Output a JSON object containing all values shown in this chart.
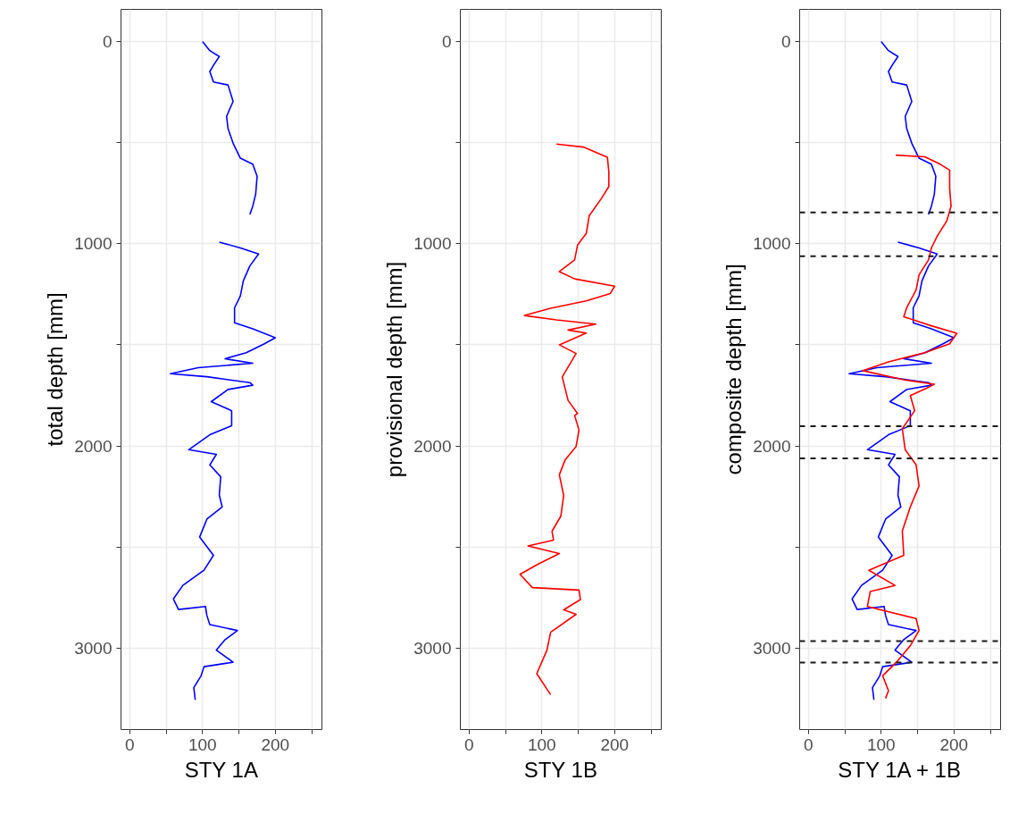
{
  "chart_data": [
    {
      "type": "line",
      "xlabel": "STY 1A",
      "ylabel": "total depth [mm]",
      "xlim": [
        -12,
        264
      ],
      "xticks": [
        0,
        {
          "value": 50,
          "label": null
        },
        100,
        {
          "value": 150,
          "label": null
        },
        200,
        {
          "value": 250,
          "label": null
        }
      ],
      "ylim": [
        3403,
        -159
      ],
      "yticks": [
        0,
        {
          "value": 500,
          "label": null
        },
        1000,
        {
          "value": 1500,
          "label": null
        },
        2000,
        {
          "value": 2500,
          "label": null
        },
        3000
      ],
      "grid": true,
      "series": [
        {
          "color": "#0000ff",
          "x": [
            100,
            110,
            123,
            115,
            110,
            115,
            135,
            142,
            133,
            135,
            142,
            152,
            169,
            175,
            173,
            169,
            165,
            null,
            123,
            152,
            177,
            165,
            156,
            152,
            144,
            144,
            169,
            200,
            185,
            160,
            131,
            169,
            94,
            56,
            106,
            165,
            169,
            135,
            112,
            140,
            140,
            110,
            81,
            119,
            110,
            125,
            123,
            127,
            106,
            96,
            115,
            102,
            73,
            60,
            67,
            104,
            106,
            110,
            148,
            131,
            119,
            142,
            102,
            98,
            88,
            90
          ],
          "values": [
            0,
            45,
            74,
            118,
            148,
            200,
            215,
            296,
            370,
            430,
            503,
            577,
            607,
            666,
            755,
            814,
            855,
            null,
            992,
            1021,
            1051,
            1110,
            1184,
            1258,
            1317,
            1391,
            1421,
            1465,
            1495,
            1539,
            1569,
            1591,
            1613,
            1643,
            1658,
            1687,
            1700,
            1721,
            1781,
            1826,
            1900,
            1945,
            2019,
            2042,
            2094,
            2153,
            2243,
            2302,
            2362,
            2451,
            2541,
            2615,
            2690,
            2757,
            2809,
            2794,
            2839,
            2884,
            2913,
            2958,
            3010,
            3070,
            3092,
            3137,
            3196,
            3256
          ]
        }
      ]
    },
    {
      "type": "line",
      "xlabel": "STY 1B",
      "ylabel": "provisional depth [mm]",
      "xlim": [
        -12,
        264
      ],
      "xticks": [
        0,
        {
          "value": 50,
          "label": null
        },
        100,
        {
          "value": 150,
          "label": null
        },
        200,
        {
          "value": 250,
          "label": null
        }
      ],
      "ylim": [
        3403,
        -159
      ],
      "yticks": [
        0,
        {
          "value": 500,
          "label": null
        },
        1000,
        {
          "value": 1500,
          "label": null
        },
        2000,
        {
          "value": 2500,
          "label": null
        },
        3000
      ],
      "grid": true,
      "series": [
        {
          "color": "#ff0000",
          "x": [
            120,
            157,
            190,
            192,
            192,
            182,
            165,
            161,
            149,
            145,
            124,
            145,
            200,
            194,
            161,
            112,
            76,
            120,
            174,
            136,
            161,
            124,
            147,
            128,
            136,
            149,
            145,
            151,
            147,
            132,
            124,
            130,
            126,
            114,
            116,
            81,
            124,
            95,
            70,
            87,
            151,
            153,
            130,
            147,
            112,
            107,
            93,
            112
          ],
          "values": [
            507,
            522,
            572,
            645,
            717,
            775,
            862,
            949,
            1007,
            1080,
            1138,
            1174,
            1210,
            1246,
            1283,
            1319,
            1355,
            1377,
            1398,
            1427,
            1442,
            1500,
            1543,
            1659,
            1775,
            1840,
            1849,
            1922,
            2003,
            2069,
            2143,
            2245,
            2348,
            2422,
            2466,
            2495,
            2532,
            2584,
            2635,
            2701,
            2713,
            2760,
            2811,
            2833,
            2922,
            3010,
            3127,
            3230
          ]
        }
      ]
    },
    {
      "type": "line",
      "xlabel": "STY 1A + 1B",
      "ylabel": "composite depth [mm]",
      "xlim": [
        -12,
        264
      ],
      "xticks": [
        0,
        {
          "value": 50,
          "label": null
        },
        100,
        {
          "value": 150,
          "label": null
        },
        200,
        {
          "value": 250,
          "label": null
        }
      ],
      "ylim": [
        3403,
        -159
      ],
      "yticks": [
        0,
        {
          "value": 500,
          "label": null
        },
        1000,
        {
          "value": 1500,
          "label": null
        },
        2000,
        {
          "value": 2500,
          "label": null
        },
        3000
      ],
      "grid": true,
      "series": [
        {
          "color": "#0000ff",
          "x": [
            100,
            110,
            123,
            115,
            110,
            115,
            135,
            142,
            133,
            135,
            142,
            152,
            169,
            175,
            173,
            169,
            165,
            null,
            123,
            152,
            177,
            165,
            156,
            152,
            144,
            144,
            169,
            200,
            185,
            160,
            131,
            169,
            94,
            56,
            106,
            165,
            169,
            135,
            112,
            140,
            140,
            110,
            81,
            119,
            110,
            125,
            123,
            127,
            106,
            96,
            115,
            102,
            73,
            60,
            67,
            104,
            106,
            110,
            148,
            131,
            119,
            142,
            102,
            98,
            88,
            90
          ],
          "values": [
            0,
            45,
            74,
            118,
            148,
            200,
            215,
            296,
            370,
            430,
            503,
            577,
            607,
            666,
            755,
            814,
            855,
            null,
            992,
            1021,
            1051,
            1110,
            1184,
            1258,
            1317,
            1391,
            1421,
            1465,
            1495,
            1539,
            1569,
            1591,
            1613,
            1643,
            1658,
            1687,
            1700,
            1721,
            1781,
            1826,
            1900,
            1945,
            2019,
            2042,
            2094,
            2153,
            2243,
            2302,
            2362,
            2451,
            2541,
            2615,
            2690,
            2757,
            2809,
            2794,
            2839,
            2884,
            2913,
            2958,
            3010,
            3070,
            3092,
            3137,
            3196,
            3256
          ]
        },
        {
          "color": "#ff0000",
          "x": [
            120,
            160,
            181,
            194,
            194,
            196,
            190,
            177,
            169,
            165,
            152,
            148,
            135,
            131,
            169,
            204,
            194,
            160,
            110,
            75,
            131,
            173,
            165,
            140,
            146,
            129,
            133,
            148,
            152,
            140,
            129,
            131,
            83,
            119,
            85,
            81,
            148,
            152,
            140,
            123,
            102,
            110,
            106
          ],
          "values": [
            562,
            570,
            607,
            636,
            725,
            814,
            888,
            962,
            1021,
            1080,
            1154,
            1228,
            1317,
            1361,
            1406,
            1443,
            1495,
            1539,
            1584,
            1628,
            1673,
            1695,
            1710,
            1751,
            1826,
            1915,
            2019,
            2094,
            2198,
            2302,
            2421,
            2541,
            2615,
            2690,
            2720,
            2794,
            2854,
            2913,
            2988,
            3062,
            3137,
            3211,
            3249
          ]
        }
      ],
      "ref_lines": [
        {
          "axis": "y",
          "value": 845,
          "color": "#1a1a1a",
          "line_style": "dashed"
        },
        {
          "axis": "y",
          "value": 1062,
          "color": "#1a1a1a",
          "line_style": "dashed"
        },
        {
          "axis": "y",
          "value": 1903,
          "color": "#1a1a1a",
          "line_style": "dashed"
        },
        {
          "axis": "y",
          "value": 2062,
          "color": "#1a1a1a",
          "line_style": "dashed"
        },
        {
          "axis": "y",
          "value": 2965,
          "color": "#1a1a1a",
          "line_style": "dashed"
        },
        {
          "axis": "y",
          "value": 3071,
          "color": "#1a1a1a",
          "line_style": "dashed"
        }
      ]
    }
  ]
}
